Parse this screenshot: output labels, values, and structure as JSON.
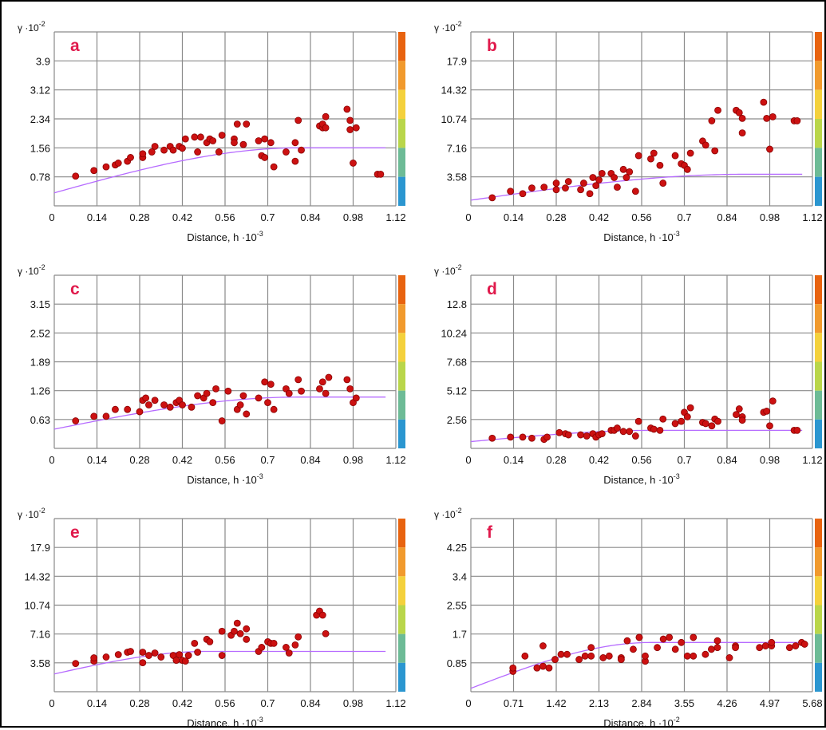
{
  "chart_data": [
    {
      "type": "scatter",
      "panel_label": "a",
      "ylabel_base": "γ ·10",
      "ylabel_exp": "-2",
      "xlabel_base": "Distance, h ·10",
      "xlabel_exp": "-3",
      "xlim": [
        0,
        1.12
      ],
      "xticks": [
        "0",
        "0.14",
        "0.28",
        "0.42",
        "0.56",
        "0.7",
        "0.84",
        "0.98",
        "1.12"
      ],
      "ylim": [
        0,
        4.68
      ],
      "yticks": [
        "0.78",
        "1.56",
        "2.34",
        "3.12",
        "3.9"
      ],
      "yticks_values": [
        0.78,
        1.56,
        2.34,
        3.12,
        3.9
      ],
      "grid": true,
      "model": {
        "nugget": 0.35,
        "sill": 1.56,
        "range": 0.8
      },
      "points": [
        [
          0.07,
          0.8
        ],
        [
          0.13,
          0.95
        ],
        [
          0.17,
          1.05
        ],
        [
          0.2,
          1.1
        ],
        [
          0.21,
          1.15
        ],
        [
          0.24,
          1.2
        ],
        [
          0.25,
          1.3
        ],
        [
          0.29,
          1.3
        ],
        [
          0.29,
          1.4
        ],
        [
          0.32,
          1.45
        ],
        [
          0.33,
          1.6
        ],
        [
          0.36,
          1.5
        ],
        [
          0.38,
          1.6
        ],
        [
          0.39,
          1.5
        ],
        [
          0.41,
          1.6
        ],
        [
          0.42,
          1.55
        ],
        [
          0.43,
          1.8
        ],
        [
          0.46,
          1.85
        ],
        [
          0.47,
          1.45
        ],
        [
          0.48,
          1.85
        ],
        [
          0.5,
          1.7
        ],
        [
          0.51,
          1.8
        ],
        [
          0.52,
          1.75
        ],
        [
          0.54,
          1.45
        ],
        [
          0.55,
          1.9
        ],
        [
          0.59,
          1.8
        ],
        [
          0.59,
          1.7
        ],
        [
          0.6,
          2.2
        ],
        [
          0.62,
          1.65
        ],
        [
          0.63,
          2.2
        ],
        [
          0.67,
          1.75
        ],
        [
          0.68,
          1.35
        ],
        [
          0.69,
          1.3
        ],
        [
          0.69,
          1.8
        ],
        [
          0.71,
          1.7
        ],
        [
          0.72,
          1.05
        ],
        [
          0.76,
          1.45
        ],
        [
          0.79,
          1.2
        ],
        [
          0.79,
          1.7
        ],
        [
          0.8,
          2.3
        ],
        [
          0.81,
          1.5
        ],
        [
          0.87,
          2.15
        ],
        [
          0.88,
          2.1
        ],
        [
          0.88,
          2.2
        ],
        [
          0.89,
          2.4
        ],
        [
          0.89,
          2.1
        ],
        [
          0.96,
          2.6
        ],
        [
          0.97,
          2.3
        ],
        [
          0.97,
          2.05
        ],
        [
          0.98,
          1.15
        ],
        [
          0.99,
          2.1
        ],
        [
          1.06,
          0.85
        ],
        [
          1.07,
          0.85
        ]
      ]
    },
    {
      "type": "scatter",
      "panel_label": "b",
      "ylabel_base": "γ ·10",
      "ylabel_exp": "-2",
      "xlabel_base": "Distance, h ·10",
      "xlabel_exp": "-3",
      "xlim": [
        0,
        1.12
      ],
      "xticks": [
        "0",
        "0.14",
        "0.28",
        "0.42",
        "0.56",
        "0.7",
        "0.84",
        "0.98",
        "1.12"
      ],
      "ylim": [
        0,
        21.48
      ],
      "yticks": [
        "3.58",
        "7.16",
        "10.74",
        "14.32",
        "17.9"
      ],
      "yticks_values": [
        3.58,
        7.16,
        10.74,
        14.32,
        17.9
      ],
      "grid": true,
      "model": {
        "nugget": 0.7,
        "sill": 3.9,
        "range": 0.9
      },
      "points": [
        [
          0.07,
          1.0
        ],
        [
          0.13,
          1.8
        ],
        [
          0.17,
          1.5
        ],
        [
          0.2,
          2.2
        ],
        [
          0.24,
          2.3
        ],
        [
          0.28,
          2.0
        ],
        [
          0.28,
          2.8
        ],
        [
          0.31,
          2.2
        ],
        [
          0.32,
          3.0
        ],
        [
          0.36,
          2.0
        ],
        [
          0.37,
          2.8
        ],
        [
          0.39,
          1.5
        ],
        [
          0.4,
          3.5
        ],
        [
          0.41,
          2.5
        ],
        [
          0.42,
          3.2
        ],
        [
          0.43,
          4.0
        ],
        [
          0.46,
          4.0
        ],
        [
          0.47,
          3.5
        ],
        [
          0.48,
          2.3
        ],
        [
          0.5,
          4.5
        ],
        [
          0.51,
          3.5
        ],
        [
          0.52,
          4.2
        ],
        [
          0.54,
          1.8
        ],
        [
          0.55,
          6.2
        ],
        [
          0.59,
          5.8
        ],
        [
          0.6,
          6.5
        ],
        [
          0.62,
          5.0
        ],
        [
          0.63,
          2.8
        ],
        [
          0.67,
          6.2
        ],
        [
          0.69,
          5.2
        ],
        [
          0.7,
          5.0
        ],
        [
          0.71,
          4.5
        ],
        [
          0.72,
          6.5
        ],
        [
          0.76,
          8.0
        ],
        [
          0.77,
          7.5
        ],
        [
          0.79,
          10.5
        ],
        [
          0.8,
          6.8
        ],
        [
          0.81,
          11.8
        ],
        [
          0.87,
          11.8
        ],
        [
          0.88,
          11.5
        ],
        [
          0.89,
          9.0
        ],
        [
          0.89,
          10.8
        ],
        [
          0.96,
          12.8
        ],
        [
          0.97,
          10.8
        ],
        [
          0.98,
          7.0
        ],
        [
          0.99,
          11.0
        ],
        [
          1.06,
          10.5
        ],
        [
          1.07,
          10.5
        ]
      ]
    },
    {
      "type": "scatter",
      "panel_label": "c",
      "ylabel_base": "γ ·10",
      "ylabel_exp": "-2",
      "xlabel_base": "Distance, h ·10",
      "xlabel_exp": "-3",
      "xlim": [
        0,
        1.12
      ],
      "xticks": [
        "0",
        "0.14",
        "0.28",
        "0.42",
        "0.56",
        "0.7",
        "0.84",
        "0.98",
        "1.12"
      ],
      "ylim": [
        0,
        3.78
      ],
      "yticks": [
        "0.63",
        "1.26",
        "1.89",
        "2.52",
        "3.15"
      ],
      "yticks_values": [
        0.63,
        1.26,
        1.89,
        2.52,
        3.15
      ],
      "grid": true,
      "model": {
        "nugget": 0.42,
        "sill": 1.12,
        "range": 0.8
      },
      "points": [
        [
          0.07,
          0.6
        ],
        [
          0.13,
          0.7
        ],
        [
          0.17,
          0.7
        ],
        [
          0.2,
          0.85
        ],
        [
          0.24,
          0.85
        ],
        [
          0.28,
          0.8
        ],
        [
          0.29,
          1.05
        ],
        [
          0.3,
          1.1
        ],
        [
          0.31,
          0.95
        ],
        [
          0.33,
          1.05
        ],
        [
          0.36,
          0.95
        ],
        [
          0.38,
          0.9
        ],
        [
          0.4,
          1.0
        ],
        [
          0.41,
          1.05
        ],
        [
          0.42,
          0.95
        ],
        [
          0.45,
          0.9
        ],
        [
          0.47,
          1.15
        ],
        [
          0.49,
          1.1
        ],
        [
          0.5,
          1.2
        ],
        [
          0.52,
          1.0
        ],
        [
          0.53,
          1.3
        ],
        [
          0.55,
          0.6
        ],
        [
          0.57,
          1.25
        ],
        [
          0.6,
          0.85
        ],
        [
          0.61,
          0.95
        ],
        [
          0.62,
          1.15
        ],
        [
          0.63,
          0.75
        ],
        [
          0.67,
          1.1
        ],
        [
          0.69,
          1.45
        ],
        [
          0.7,
          1.0
        ],
        [
          0.71,
          1.4
        ],
        [
          0.72,
          0.85
        ],
        [
          0.76,
          1.3
        ],
        [
          0.77,
          1.2
        ],
        [
          0.8,
          1.5
        ],
        [
          0.81,
          1.25
        ],
        [
          0.87,
          1.3
        ],
        [
          0.88,
          1.45
        ],
        [
          0.89,
          1.2
        ],
        [
          0.9,
          1.55
        ],
        [
          0.96,
          1.5
        ],
        [
          0.97,
          1.3
        ],
        [
          0.98,
          1.0
        ],
        [
          0.99,
          1.1
        ]
      ]
    },
    {
      "type": "scatter",
      "panel_label": "d",
      "ylabel_base": "γ ·10",
      "ylabel_exp": "-2",
      "xlabel_base": "Distance, h ·10",
      "xlabel_exp": "-3",
      "xlim": [
        0,
        1.12
      ],
      "xticks": [
        "0",
        "0.14",
        "0.28",
        "0.42",
        "0.56",
        "0.7",
        "0.84",
        "0.98",
        "1.12"
      ],
      "ylim": [
        0,
        15.36
      ],
      "yticks": [
        "2.56",
        "5.12",
        "7.68",
        "10.24",
        "12.8"
      ],
      "yticks_values": [
        2.56,
        5.12,
        7.68,
        10.24,
        12.8
      ],
      "grid": true,
      "model": {
        "nugget": 0.6,
        "sill": 1.6,
        "range": 0.6
      },
      "points": [
        [
          0.07,
          0.9
        ],
        [
          0.13,
          1.0
        ],
        [
          0.17,
          1.0
        ],
        [
          0.2,
          0.9
        ],
        [
          0.24,
          0.8
        ],
        [
          0.25,
          1.0
        ],
        [
          0.29,
          1.4
        ],
        [
          0.31,
          1.3
        ],
        [
          0.32,
          1.2
        ],
        [
          0.36,
          1.2
        ],
        [
          0.38,
          1.1
        ],
        [
          0.4,
          1.3
        ],
        [
          0.41,
          1.0
        ],
        [
          0.42,
          1.2
        ],
        [
          0.43,
          1.3
        ],
        [
          0.46,
          1.6
        ],
        [
          0.47,
          1.6
        ],
        [
          0.48,
          1.8
        ],
        [
          0.5,
          1.5
        ],
        [
          0.52,
          1.5
        ],
        [
          0.54,
          1.1
        ],
        [
          0.55,
          2.4
        ],
        [
          0.59,
          1.8
        ],
        [
          0.6,
          1.7
        ],
        [
          0.62,
          1.6
        ],
        [
          0.63,
          2.6
        ],
        [
          0.67,
          2.2
        ],
        [
          0.69,
          2.4
        ],
        [
          0.7,
          3.2
        ],
        [
          0.71,
          2.8
        ],
        [
          0.72,
          3.6
        ],
        [
          0.76,
          2.3
        ],
        [
          0.77,
          2.2
        ],
        [
          0.79,
          2.0
        ],
        [
          0.8,
          2.6
        ],
        [
          0.81,
          2.4
        ],
        [
          0.87,
          3.0
        ],
        [
          0.88,
          3.5
        ],
        [
          0.89,
          2.8
        ],
        [
          0.89,
          2.5
        ],
        [
          0.96,
          3.2
        ],
        [
          0.97,
          3.3
        ],
        [
          0.98,
          2.0
        ],
        [
          0.99,
          4.2
        ],
        [
          1.06,
          1.6
        ],
        [
          1.07,
          1.6
        ]
      ]
    },
    {
      "type": "scatter",
      "panel_label": "e",
      "ylabel_base": "γ ·10",
      "ylabel_exp": "-2",
      "xlabel_base": "Distance, h ·10",
      "xlabel_exp": "-3",
      "xlim": [
        0,
        1.12
      ],
      "xticks": [
        "0",
        "0.14",
        "0.28",
        "0.42",
        "0.56",
        "0.7",
        "0.84",
        "0.98",
        "1.12"
      ],
      "ylim": [
        0,
        21.48
      ],
      "yticks": [
        "3.58",
        "7.16",
        "10.74",
        "14.32",
        "17.9"
      ],
      "yticks_values": [
        3.58,
        7.16,
        10.74,
        14.32,
        17.9
      ],
      "grid": true,
      "model": {
        "nugget": 2.2,
        "sill": 5.0,
        "range": 0.5
      },
      "points": [
        [
          0.07,
          3.5
        ],
        [
          0.13,
          3.8
        ],
        [
          0.13,
          4.2
        ],
        [
          0.17,
          4.3
        ],
        [
          0.21,
          4.6
        ],
        [
          0.24,
          4.9
        ],
        [
          0.25,
          5.0
        ],
        [
          0.29,
          4.9
        ],
        [
          0.29,
          3.6
        ],
        [
          0.31,
          4.5
        ],
        [
          0.33,
          4.8
        ],
        [
          0.35,
          4.3
        ],
        [
          0.39,
          4.5
        ],
        [
          0.4,
          3.9
        ],
        [
          0.41,
          4.6
        ],
        [
          0.42,
          3.9
        ],
        [
          0.43,
          3.8
        ],
        [
          0.44,
          4.5
        ],
        [
          0.46,
          6.0
        ],
        [
          0.47,
          4.9
        ],
        [
          0.5,
          6.5
        ],
        [
          0.51,
          6.2
        ],
        [
          0.55,
          7.5
        ],
        [
          0.55,
          4.5
        ],
        [
          0.58,
          7.0
        ],
        [
          0.59,
          7.5
        ],
        [
          0.6,
          8.5
        ],
        [
          0.61,
          7.2
        ],
        [
          0.63,
          6.5
        ],
        [
          0.63,
          7.8
        ],
        [
          0.67,
          5.0
        ],
        [
          0.68,
          5.5
        ],
        [
          0.7,
          6.2
        ],
        [
          0.71,
          6.0
        ],
        [
          0.72,
          6.0
        ],
        [
          0.76,
          5.5
        ],
        [
          0.77,
          4.8
        ],
        [
          0.79,
          5.8
        ],
        [
          0.8,
          6.8
        ],
        [
          0.86,
          9.5
        ],
        [
          0.87,
          10.0
        ],
        [
          0.88,
          9.5
        ],
        [
          0.89,
          7.2
        ]
      ]
    },
    {
      "type": "scatter",
      "panel_label": "f",
      "ylabel_base": "γ ·10",
      "ylabel_exp": "-2",
      "xlabel_base": "Distance, h ·10",
      "xlabel_exp": "-2",
      "xlim": [
        0,
        5.68
      ],
      "xticks": [
        "0",
        "0.71",
        "1.42",
        "2.13",
        "2.84",
        "3.55",
        "4.26",
        "4.97",
        "5.68"
      ],
      "ylim": [
        0,
        5.1
      ],
      "yticks": [
        "0.85",
        "1.7",
        "2.55",
        "3.4",
        "4.25"
      ],
      "yticks_values": [
        0.85,
        1.7,
        2.55,
        3.4,
        4.25
      ],
      "grid": true,
      "model": {
        "nugget": 0.1,
        "sill": 1.45,
        "range": 3.0
      },
      "points": [
        [
          0.7,
          0.6
        ],
        [
          0.7,
          0.7
        ],
        [
          0.9,
          1.05
        ],
        [
          1.1,
          0.7
        ],
        [
          1.2,
          0.75
        ],
        [
          1.3,
          0.7
        ],
        [
          1.2,
          1.35
        ],
        [
          1.4,
          0.95
        ],
        [
          1.5,
          1.1
        ],
        [
          1.6,
          1.1
        ],
        [
          1.8,
          0.95
        ],
        [
          1.9,
          1.05
        ],
        [
          2.0,
          1.05
        ],
        [
          2.0,
          1.3
        ],
        [
          2.2,
          1.0
        ],
        [
          2.3,
          1.05
        ],
        [
          2.5,
          1.0
        ],
        [
          2.5,
          0.95
        ],
        [
          2.6,
          1.5
        ],
        [
          2.7,
          1.25
        ],
        [
          2.8,
          1.6
        ],
        [
          2.8,
          1.6
        ],
        [
          2.9,
          0.9
        ],
        [
          2.9,
          1.05
        ],
        [
          3.1,
          1.3
        ],
        [
          3.2,
          1.55
        ],
        [
          3.3,
          1.6
        ],
        [
          3.4,
          1.25
        ],
        [
          3.5,
          1.45
        ],
        [
          3.6,
          1.05
        ],
        [
          3.7,
          1.05
        ],
        [
          3.7,
          1.6
        ],
        [
          3.9,
          1.1
        ],
        [
          4.0,
          1.25
        ],
        [
          4.1,
          1.5
        ],
        [
          4.1,
          1.3
        ],
        [
          4.3,
          1.0
        ],
        [
          4.4,
          1.35
        ],
        [
          4.4,
          1.3
        ],
        [
          4.8,
          1.3
        ],
        [
          4.9,
          1.35
        ],
        [
          5.0,
          1.35
        ],
        [
          5.0,
          1.45
        ],
        [
          5.3,
          1.3
        ],
        [
          5.4,
          1.35
        ],
        [
          5.5,
          1.45
        ],
        [
          5.55,
          1.4
        ]
      ]
    }
  ],
  "style": {
    "point_color": "#cc1111",
    "point_edge": "#8a0000",
    "model_color": "#b66bff",
    "grid_color": "#8a8a8a",
    "axis_color": "#555555",
    "label_color": "#e0194b",
    "colorbar": [
      "#e8630f",
      "#f19a2d",
      "#f4d13c",
      "#b9d64a",
      "#6dbb96",
      "#2b96d0"
    ]
  }
}
